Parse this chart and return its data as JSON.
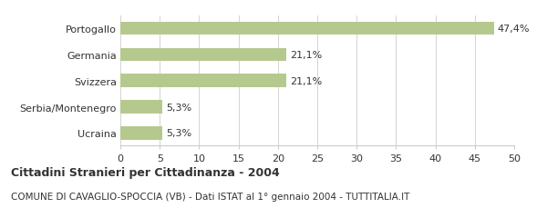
{
  "categories": [
    "Portogallo",
    "Germania",
    "Svizzera",
    "Serbia/Montenegro",
    "Ucraina"
  ],
  "values": [
    47.4,
    21.1,
    21.1,
    5.3,
    5.3
  ],
  "labels": [
    "47,4%",
    "21,1%",
    "21,1%",
    "5,3%",
    "5,3%"
  ],
  "bar_color": "#b5c98e",
  "xlim": [
    0,
    50
  ],
  "xticks": [
    0,
    5,
    10,
    15,
    20,
    25,
    30,
    35,
    40,
    45,
    50
  ],
  "title_bold": "Cittadini Stranieri per Cittadinanza - 2004",
  "subtitle": "COMUNE DI CAVAGLIO-SPOCCIA (VB) - Dati ISTAT al 1° gennaio 2004 - TUTTITALIA.IT",
  "background_color": "#ffffff",
  "bar_height": 0.5,
  "label_fontsize": 8,
  "tick_fontsize": 8,
  "title_fontsize": 9,
  "subtitle_fontsize": 7.5,
  "grid_color": "#cccccc",
  "text_color": "#333333"
}
